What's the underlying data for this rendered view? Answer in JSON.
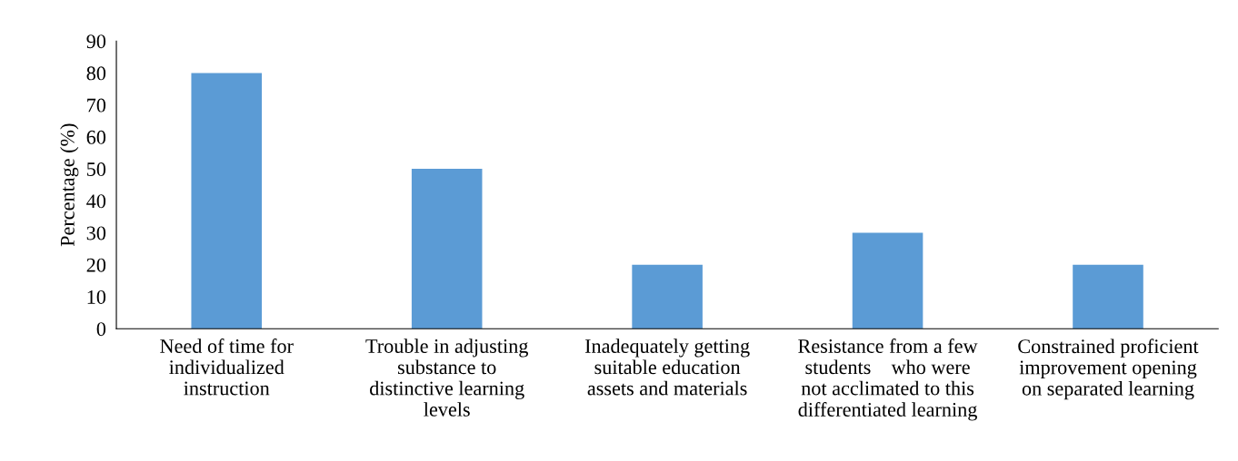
{
  "chart_data": {
    "type": "bar",
    "ylabel": "Percentage (%)",
    "categories": [
      "Need of time for\nindividualized\ninstruction",
      "Trouble in adjusting\nsubstance to\ndistinctive learning\nlevels",
      "Inadequately getting\nsuitable education\nassets and materials",
      "Resistance from a few\nstudents    who were\nnot acclimated to this\ndifferentiated learning",
      "Constrained proficient\nimprovement opening\non separated learning"
    ],
    "values": [
      80,
      50,
      20,
      30,
      20
    ],
    "color": "#5b9bd5",
    "ylim": [
      0,
      90
    ],
    "yticks": [
      0,
      10,
      20,
      30,
      40,
      50,
      60,
      70,
      80,
      90
    ],
    "grid": false
  }
}
